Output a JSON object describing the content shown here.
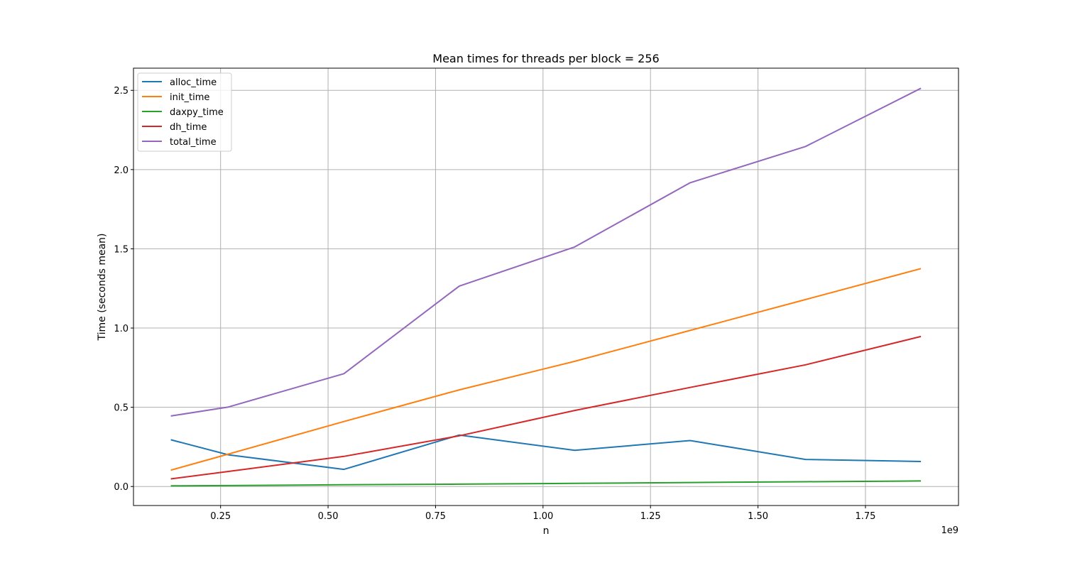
{
  "chart_data": {
    "type": "line",
    "title": "Mean times for threads per block = 256",
    "xlabel": "n",
    "ylabel": "Time (seconds mean)",
    "x_offset_label": "1e9",
    "x": [
      134217728,
      268435456,
      536870912,
      805306368,
      1073741824,
      1342177280,
      1610612736,
      1879048192
    ],
    "xlim": [
      0.0474,
      1.9664
    ],
    "ylim": [
      -0.12,
      2.64
    ],
    "x_ticks": [
      0.25,
      0.5,
      0.75,
      1.0,
      1.25,
      1.5,
      1.75
    ],
    "x_tick_labels": [
      "0.25",
      "0.50",
      "0.75",
      "1.00",
      "1.25",
      "1.50",
      "1.75"
    ],
    "y_ticks": [
      0.0,
      0.5,
      1.0,
      1.5,
      2.0,
      2.5
    ],
    "y_tick_labels": [
      "0.0",
      "0.5",
      "1.0",
      "1.5",
      "2.0",
      "2.5"
    ],
    "grid": true,
    "legend_position": "top-left",
    "series": [
      {
        "name": "alloc_time",
        "color": "#1f77b4",
        "values": [
          0.295,
          0.2,
          0.108,
          0.325,
          0.228,
          0.29,
          0.171,
          0.158
        ]
      },
      {
        "name": "init_time",
        "color": "#ff7f0e",
        "values": [
          0.103,
          0.205,
          0.41,
          0.61,
          0.79,
          0.985,
          1.18,
          1.375
        ]
      },
      {
        "name": "daxpy_time",
        "color": "#2ca02c",
        "values": [
          0.004,
          0.006,
          0.011,
          0.015,
          0.02,
          0.025,
          0.03,
          0.035
        ]
      },
      {
        "name": "dh_time",
        "color": "#d62728",
        "values": [
          0.048,
          0.095,
          0.19,
          0.32,
          0.48,
          0.625,
          0.768,
          0.947
        ]
      },
      {
        "name": "total_time",
        "color": "#9467bd",
        "values": [
          0.445,
          0.502,
          0.712,
          1.265,
          1.512,
          1.917,
          2.146,
          2.513
        ]
      }
    ]
  }
}
